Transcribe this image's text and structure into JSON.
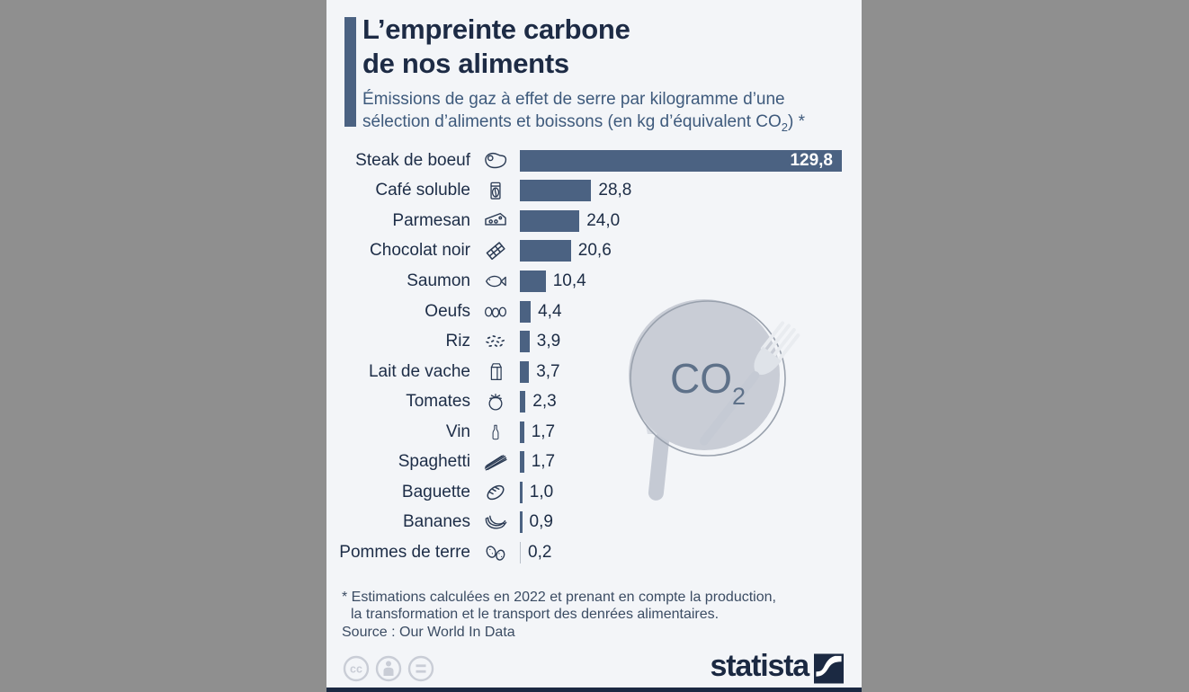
{
  "header": {
    "title_line1": "L’empreinte carbone",
    "title_line2": "de nos aliments",
    "subtitle_line1": "Émissions de gaz à effet de serre par kilogramme d’une",
    "subtitle_line2_pre": "sélection d’aliments et boissons (en kg d’équivalent CO",
    "subtitle_co2_sub": "2",
    "subtitle_line2_post": ") *"
  },
  "chart_data": {
    "type": "bar",
    "orientation": "horizontal",
    "title": "L’empreinte carbone de nos aliments",
    "unit_note": "kg d’équivalent CO2 par kilogramme d’aliment",
    "xlim": [
      0,
      129.8
    ],
    "bar_color": "#4b6282",
    "grid": false,
    "legend": "none",
    "categories": [
      "Steak de boeuf",
      "Café soluble",
      "Parmesan",
      "Chocolat noir",
      "Saumon",
      "Oeufs",
      "Riz",
      "Lait de vache",
      "Tomates",
      "Vin",
      "Spaghetti",
      "Baguette",
      "Bananes",
      "Pommes de terre"
    ],
    "values": [
      129.8,
      28.8,
      24.0,
      20.6,
      10.4,
      4.4,
      3.9,
      3.7,
      2.3,
      1.7,
      1.7,
      1.0,
      0.9,
      0.2
    ],
    "items": [
      {
        "label": "Steak de boeuf",
        "icon": "steak-icon",
        "value": 129.8,
        "display": "129,8",
        "label_inside": true
      },
      {
        "label": "Café soluble",
        "icon": "coffee-jar-icon",
        "value": 28.8,
        "display": "28,8"
      },
      {
        "label": "Parmesan",
        "icon": "cheese-icon",
        "value": 24.0,
        "display": "24,0"
      },
      {
        "label": "Chocolat noir",
        "icon": "chocolate-icon",
        "value": 20.6,
        "display": "20,6"
      },
      {
        "label": "Saumon",
        "icon": "fish-icon",
        "value": 10.4,
        "display": "10,4"
      },
      {
        "label": "Oeufs",
        "icon": "eggs-icon",
        "value": 4.4,
        "display": "4,4"
      },
      {
        "label": "Riz",
        "icon": "rice-icon",
        "value": 3.9,
        "display": "3,9"
      },
      {
        "label": "Lait de vache",
        "icon": "milk-carton-icon",
        "value": 3.7,
        "display": "3,7"
      },
      {
        "label": "Tomates",
        "icon": "tomato-icon",
        "value": 2.3,
        "display": "2,3"
      },
      {
        "label": "Vin",
        "icon": "wine-bottle-icon",
        "value": 1.7,
        "display": "1,7"
      },
      {
        "label": "Spaghetti",
        "icon": "spaghetti-icon",
        "value": 1.7,
        "display": "1,7"
      },
      {
        "label": "Baguette",
        "icon": "baguette-icon",
        "value": 1.0,
        "display": "1,0"
      },
      {
        "label": "Bananes",
        "icon": "bananas-icon",
        "value": 0.9,
        "display": "0,9"
      },
      {
        "label": "Pommes de terre",
        "icon": "potatoes-icon",
        "value": 0.2,
        "display": "0,2",
        "bar_color": "#b9c0ca"
      }
    ]
  },
  "illustration": {
    "co2_pre": "CO",
    "co2_sub": "2"
  },
  "footnote": {
    "line1": "* Estimations calculées en 2022 et prenant en compte la production,",
    "line2": "la transformation et le transport des denrées alimentaires."
  },
  "source": {
    "text": "Source : Our World In Data"
  },
  "footer": {
    "brand": "statista",
    "license_icons": [
      "cc-icon",
      "attribution-icon",
      "nd-icon"
    ]
  },
  "colors": {
    "outer_background": "#8f8f8f",
    "card_background": "#f3f5f8",
    "accent": "#4b6282",
    "bar": "#4b6282",
    "bar_light": "#b9c0ca",
    "title_text": "#1d2b45",
    "subtitle_text": "#3e5a7c",
    "label_text": "#1d2d47",
    "footnote_text": "#3b4c63",
    "illustration_gray": "#c9cdd6",
    "co2_text": "#5e7189",
    "brand_navy": "#1b2942"
  }
}
